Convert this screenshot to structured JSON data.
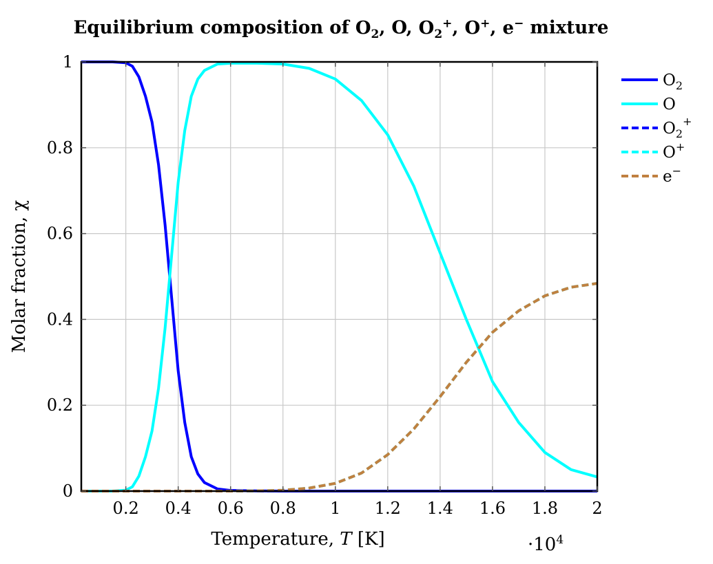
{
  "chart_data": {
    "type": "line",
    "title_parts": {
      "prefix": "Equilibrium composition of ",
      "species": [
        "O2",
        "O",
        "O2+",
        "O+",
        "e−"
      ],
      "suffix": " mixture"
    },
    "xlabel": "Temperature, T [K]",
    "ylabel": "Molar fraction, χ",
    "x_scale_label": "·10^4",
    "xlim": [
      300,
      20000
    ],
    "ylim": [
      0,
      1
    ],
    "x_ticks": [
      2000,
      4000,
      6000,
      8000,
      10000,
      12000,
      14000,
      16000,
      18000,
      20000
    ],
    "x_tick_labels": [
      "0.2",
      "0.4",
      "0.6",
      "0.8",
      "1",
      "1.2",
      "1.4",
      "1.6",
      "1.8",
      "2"
    ],
    "y_ticks": [
      0,
      0.2,
      0.4,
      0.6,
      0.8,
      1
    ],
    "y_tick_labels": [
      "0",
      "0.2",
      "0.4",
      "0.6",
      "0.8",
      "1"
    ],
    "grid": true,
    "legend_position": "outside-right",
    "x": [
      300,
      1000,
      1500,
      2000,
      2250,
      2500,
      2750,
      3000,
      3250,
      3500,
      3750,
      4000,
      4250,
      4500,
      4750,
      5000,
      5500,
      6000,
      7000,
      8000,
      9000,
      10000,
      11000,
      12000,
      13000,
      14000,
      15000,
      16000,
      17000,
      18000,
      19000,
      20000
    ],
    "series": [
      {
        "name": "O2",
        "color": "#0000ff",
        "dash": "solid",
        "values": [
          1.0,
          1.0,
          1.0,
          0.998,
          0.99,
          0.965,
          0.92,
          0.86,
          0.76,
          0.62,
          0.45,
          0.28,
          0.16,
          0.08,
          0.04,
          0.02,
          0.005,
          0.0015,
          0.0005,
          0.0001,
          0.0,
          0.0,
          0.0,
          0.0,
          0.0,
          0.0,
          0.0,
          0.0,
          0.0,
          0.0,
          0.0,
          0.0
        ]
      },
      {
        "name": "O",
        "color": "#00ffff",
        "dash": "solid",
        "values": [
          0.0,
          0.0,
          0.0,
          0.002,
          0.01,
          0.035,
          0.08,
          0.14,
          0.24,
          0.38,
          0.55,
          0.72,
          0.84,
          0.92,
          0.96,
          0.98,
          0.995,
          0.997,
          0.997,
          0.995,
          0.985,
          0.96,
          0.91,
          0.83,
          0.71,
          0.555,
          0.4,
          0.255,
          0.16,
          0.09,
          0.05,
          0.033
        ]
      },
      {
        "name": "O2+",
        "color": "#0000ff",
        "dash": "dashed",
        "values": [
          0.0,
          0.0,
          0.0,
          0.0,
          0.0,
          0.0,
          0.0,
          0.0,
          0.0,
          0.0,
          0.0,
          0.0,
          0.0,
          0.0,
          0.0,
          0.0,
          0.0,
          0.0,
          0.0,
          0.0,
          0.0,
          0.0,
          0.0,
          0.0,
          0.0,
          0.0,
          0.0,
          0.0,
          0.0,
          0.0,
          0.0,
          0.0
        ]
      },
      {
        "name": "O+",
        "color": "#00ffff",
        "dash": "dashed",
        "values": [
          0.0,
          0.0,
          0.0,
          0.0,
          0.0,
          0.0,
          0.0,
          0.0,
          0.0,
          0.0,
          0.0,
          0.0,
          0.0,
          0.0,
          0.0,
          0.0,
          0.0,
          0.0,
          0.0005,
          0.002,
          0.007,
          0.018,
          0.042,
          0.085,
          0.145,
          0.22,
          0.3,
          0.37,
          0.42,
          0.455,
          0.475,
          0.484
        ]
      },
      {
        "name": "e−",
        "color": "#c08040",
        "dash": "dashed",
        "values": [
          0.0,
          0.0,
          0.0,
          0.0,
          0.0,
          0.0,
          0.0,
          0.0,
          0.0,
          0.0,
          0.0,
          0.0,
          0.0,
          0.0,
          0.0,
          0.0,
          0.0,
          0.0,
          0.0005,
          0.002,
          0.007,
          0.018,
          0.042,
          0.085,
          0.145,
          0.22,
          0.3,
          0.37,
          0.42,
          0.455,
          0.475,
          0.484
        ]
      }
    ]
  }
}
